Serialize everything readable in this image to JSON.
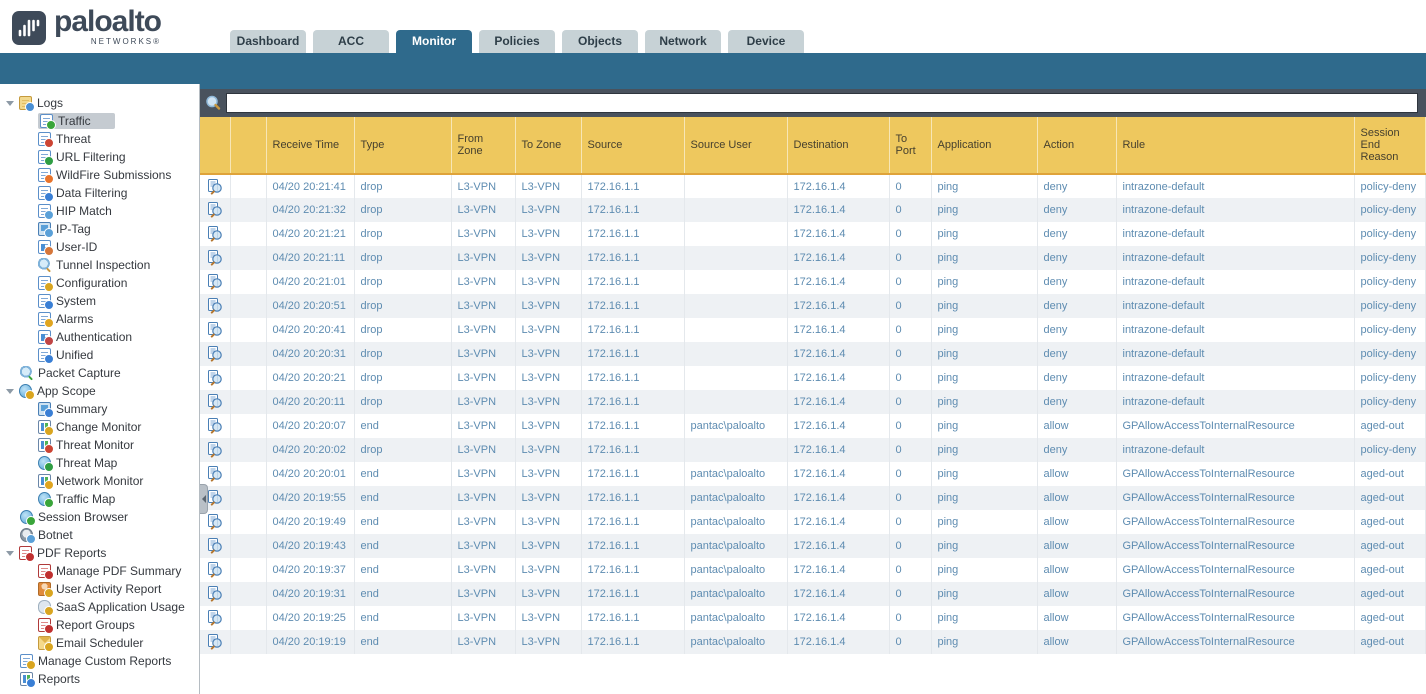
{
  "brand": {
    "name": "paloalto",
    "sub": "NETWORKS®",
    "mark_icon": "paloalto-wave-icon"
  },
  "tabs": [
    {
      "label": "Dashboard",
      "active": false
    },
    {
      "label": "ACC",
      "active": false
    },
    {
      "label": "Monitor",
      "active": true
    },
    {
      "label": "Policies",
      "active": false
    },
    {
      "label": "Objects",
      "active": false
    },
    {
      "label": "Network",
      "active": false
    },
    {
      "label": "Device",
      "active": false
    }
  ],
  "colors": {
    "active_tab": "#2f6a8c",
    "inactive_tab": "#c7d2d6",
    "table_header": "#eec85e",
    "searchbar": "#49525d",
    "row_text": "#5e8cb1",
    "brand": "#3e4a59"
  },
  "sidebar": {
    "items": [
      {
        "label": "Logs",
        "level": 0,
        "expandable": true,
        "selected": false,
        "icon": "logs-folder-icon"
      },
      {
        "label": "Traffic",
        "level": 1,
        "expandable": false,
        "selected": true,
        "icon": "traffic-log-icon"
      },
      {
        "label": "Threat",
        "level": 1,
        "expandable": false,
        "selected": false,
        "icon": "threat-log-icon"
      },
      {
        "label": "URL Filtering",
        "level": 1,
        "expandable": false,
        "selected": false,
        "icon": "url-filtering-icon"
      },
      {
        "label": "WildFire Submissions",
        "level": 1,
        "expandable": false,
        "selected": false,
        "icon": "wildfire-submissions-icon"
      },
      {
        "label": "Data Filtering",
        "level": 1,
        "expandable": false,
        "selected": false,
        "icon": "data-filtering-icon"
      },
      {
        "label": "HIP Match",
        "level": 1,
        "expandable": false,
        "selected": false,
        "icon": "hip-match-icon"
      },
      {
        "label": "IP-Tag",
        "level": 1,
        "expandable": false,
        "selected": false,
        "icon": "ip-tag-icon"
      },
      {
        "label": "User-ID",
        "level": 1,
        "expandable": false,
        "selected": false,
        "icon": "user-id-icon"
      },
      {
        "label": "Tunnel Inspection",
        "level": 1,
        "expandable": false,
        "selected": false,
        "icon": "tunnel-inspection-icon"
      },
      {
        "label": "Configuration",
        "level": 1,
        "expandable": false,
        "selected": false,
        "icon": "configuration-log-icon"
      },
      {
        "label": "System",
        "level": 1,
        "expandable": false,
        "selected": false,
        "icon": "system-log-icon"
      },
      {
        "label": "Alarms",
        "level": 1,
        "expandable": false,
        "selected": false,
        "icon": "alarms-icon"
      },
      {
        "label": "Authentication",
        "level": 1,
        "expandable": false,
        "selected": false,
        "icon": "authentication-log-icon"
      },
      {
        "label": "Unified",
        "level": 1,
        "expandable": false,
        "selected": false,
        "icon": "unified-log-icon"
      },
      {
        "label": "Packet Capture",
        "level": 0,
        "expandable": false,
        "selected": false,
        "icon": "packet-capture-icon"
      },
      {
        "label": "App Scope",
        "level": 0,
        "expandable": true,
        "selected": false,
        "icon": "app-scope-icon"
      },
      {
        "label": "Summary",
        "level": 1,
        "expandable": false,
        "selected": false,
        "icon": "summary-icon"
      },
      {
        "label": "Change Monitor",
        "level": 1,
        "expandable": false,
        "selected": false,
        "icon": "change-monitor-icon"
      },
      {
        "label": "Threat Monitor",
        "level": 1,
        "expandable": false,
        "selected": false,
        "icon": "threat-monitor-icon"
      },
      {
        "label": "Threat Map",
        "level": 1,
        "expandable": false,
        "selected": false,
        "icon": "threat-map-icon"
      },
      {
        "label": "Network Monitor",
        "level": 1,
        "expandable": false,
        "selected": false,
        "icon": "network-monitor-icon"
      },
      {
        "label": "Traffic Map",
        "level": 1,
        "expandable": false,
        "selected": false,
        "icon": "traffic-map-icon"
      },
      {
        "label": "Session Browser",
        "level": 0,
        "expandable": false,
        "selected": false,
        "icon": "session-browser-icon"
      },
      {
        "label": "Botnet",
        "level": 0,
        "expandable": false,
        "selected": false,
        "icon": "botnet-icon"
      },
      {
        "label": "PDF Reports",
        "level": 0,
        "expandable": true,
        "selected": false,
        "icon": "pdf-reports-icon"
      },
      {
        "label": "Manage PDF Summary",
        "level": 1,
        "expandable": false,
        "selected": false,
        "icon": "manage-pdf-summary-icon"
      },
      {
        "label": "User Activity Report",
        "level": 1,
        "expandable": false,
        "selected": false,
        "icon": "user-activity-report-icon"
      },
      {
        "label": "SaaS Application Usage",
        "level": 1,
        "expandable": false,
        "selected": false,
        "icon": "saas-application-usage-icon"
      },
      {
        "label": "Report Groups",
        "level": 1,
        "expandable": false,
        "selected": false,
        "icon": "report-groups-icon"
      },
      {
        "label": "Email Scheduler",
        "level": 1,
        "expandable": false,
        "selected": false,
        "icon": "email-scheduler-icon"
      },
      {
        "label": "Manage Custom Reports",
        "level": 0,
        "expandable": false,
        "selected": false,
        "icon": "manage-custom-reports-icon"
      },
      {
        "label": "Reports",
        "level": 0,
        "expandable": false,
        "selected": false,
        "icon": "reports-icon"
      }
    ]
  },
  "search": {
    "value": "",
    "icon": "search-icon"
  },
  "table": {
    "columns": [
      {
        "key": "icon",
        "label": ""
      },
      {
        "key": "blank",
        "label": ""
      },
      {
        "key": "receive_time",
        "label": "Receive Time"
      },
      {
        "key": "type",
        "label": "Type"
      },
      {
        "key": "from_zone",
        "label": "From Zone"
      },
      {
        "key": "to_zone",
        "label": "To Zone"
      },
      {
        "key": "source",
        "label": "Source"
      },
      {
        "key": "source_user",
        "label": "Source User"
      },
      {
        "key": "destination",
        "label": "Destination"
      },
      {
        "key": "to_port",
        "label": "To Port"
      },
      {
        "key": "application",
        "label": "Application"
      },
      {
        "key": "action",
        "label": "Action"
      },
      {
        "key": "rule",
        "label": "Rule"
      },
      {
        "key": "session_end_reason",
        "label": "Session End Reason"
      }
    ],
    "rows": [
      {
        "receive_time": "04/20 20:21:41",
        "type": "drop",
        "from_zone": "L3-VPN",
        "to_zone": "L3-VPN",
        "source": "172.16.1.1",
        "source_user": "",
        "destination": "172.16.1.4",
        "to_port": "0",
        "application": "ping",
        "action": "deny",
        "rule": "intrazone-default",
        "session_end_reason": "policy-deny"
      },
      {
        "receive_time": "04/20 20:21:32",
        "type": "drop",
        "from_zone": "L3-VPN",
        "to_zone": "L3-VPN",
        "source": "172.16.1.1",
        "source_user": "",
        "destination": "172.16.1.4",
        "to_port": "0",
        "application": "ping",
        "action": "deny",
        "rule": "intrazone-default",
        "session_end_reason": "policy-deny"
      },
      {
        "receive_time": "04/20 20:21:21",
        "type": "drop",
        "from_zone": "L3-VPN",
        "to_zone": "L3-VPN",
        "source": "172.16.1.1",
        "source_user": "",
        "destination": "172.16.1.4",
        "to_port": "0",
        "application": "ping",
        "action": "deny",
        "rule": "intrazone-default",
        "session_end_reason": "policy-deny"
      },
      {
        "receive_time": "04/20 20:21:11",
        "type": "drop",
        "from_zone": "L3-VPN",
        "to_zone": "L3-VPN",
        "source": "172.16.1.1",
        "source_user": "",
        "destination": "172.16.1.4",
        "to_port": "0",
        "application": "ping",
        "action": "deny",
        "rule": "intrazone-default",
        "session_end_reason": "policy-deny"
      },
      {
        "receive_time": "04/20 20:21:01",
        "type": "drop",
        "from_zone": "L3-VPN",
        "to_zone": "L3-VPN",
        "source": "172.16.1.1",
        "source_user": "",
        "destination": "172.16.1.4",
        "to_port": "0",
        "application": "ping",
        "action": "deny",
        "rule": "intrazone-default",
        "session_end_reason": "policy-deny"
      },
      {
        "receive_time": "04/20 20:20:51",
        "type": "drop",
        "from_zone": "L3-VPN",
        "to_zone": "L3-VPN",
        "source": "172.16.1.1",
        "source_user": "",
        "destination": "172.16.1.4",
        "to_port": "0",
        "application": "ping",
        "action": "deny",
        "rule": "intrazone-default",
        "session_end_reason": "policy-deny"
      },
      {
        "receive_time": "04/20 20:20:41",
        "type": "drop",
        "from_zone": "L3-VPN",
        "to_zone": "L3-VPN",
        "source": "172.16.1.1",
        "source_user": "",
        "destination": "172.16.1.4",
        "to_port": "0",
        "application": "ping",
        "action": "deny",
        "rule": "intrazone-default",
        "session_end_reason": "policy-deny"
      },
      {
        "receive_time": "04/20 20:20:31",
        "type": "drop",
        "from_zone": "L3-VPN",
        "to_zone": "L3-VPN",
        "source": "172.16.1.1",
        "source_user": "",
        "destination": "172.16.1.4",
        "to_port": "0",
        "application": "ping",
        "action": "deny",
        "rule": "intrazone-default",
        "session_end_reason": "policy-deny"
      },
      {
        "receive_time": "04/20 20:20:21",
        "type": "drop",
        "from_zone": "L3-VPN",
        "to_zone": "L3-VPN",
        "source": "172.16.1.1",
        "source_user": "",
        "destination": "172.16.1.4",
        "to_port": "0",
        "application": "ping",
        "action": "deny",
        "rule": "intrazone-default",
        "session_end_reason": "policy-deny"
      },
      {
        "receive_time": "04/20 20:20:11",
        "type": "drop",
        "from_zone": "L3-VPN",
        "to_zone": "L3-VPN",
        "source": "172.16.1.1",
        "source_user": "",
        "destination": "172.16.1.4",
        "to_port": "0",
        "application": "ping",
        "action": "deny",
        "rule": "intrazone-default",
        "session_end_reason": "policy-deny"
      },
      {
        "receive_time": "04/20 20:20:07",
        "type": "end",
        "from_zone": "L3-VPN",
        "to_zone": "L3-VPN",
        "source": "172.16.1.1",
        "source_user": "pantac\\paloalto",
        "destination": "172.16.1.4",
        "to_port": "0",
        "application": "ping",
        "action": "allow",
        "rule": "GPAllowAccessToInternalResource",
        "session_end_reason": "aged-out"
      },
      {
        "receive_time": "04/20 20:20:02",
        "type": "drop",
        "from_zone": "L3-VPN",
        "to_zone": "L3-VPN",
        "source": "172.16.1.1",
        "source_user": "",
        "destination": "172.16.1.4",
        "to_port": "0",
        "application": "ping",
        "action": "deny",
        "rule": "intrazone-default",
        "session_end_reason": "policy-deny"
      },
      {
        "receive_time": "04/20 20:20:01",
        "type": "end",
        "from_zone": "L3-VPN",
        "to_zone": "L3-VPN",
        "source": "172.16.1.1",
        "source_user": "pantac\\paloalto",
        "destination": "172.16.1.4",
        "to_port": "0",
        "application": "ping",
        "action": "allow",
        "rule": "GPAllowAccessToInternalResource",
        "session_end_reason": "aged-out"
      },
      {
        "receive_time": "04/20 20:19:55",
        "type": "end",
        "from_zone": "L3-VPN",
        "to_zone": "L3-VPN",
        "source": "172.16.1.1",
        "source_user": "pantac\\paloalto",
        "destination": "172.16.1.4",
        "to_port": "0",
        "application": "ping",
        "action": "allow",
        "rule": "GPAllowAccessToInternalResource",
        "session_end_reason": "aged-out"
      },
      {
        "receive_time": "04/20 20:19:49",
        "type": "end",
        "from_zone": "L3-VPN",
        "to_zone": "L3-VPN",
        "source": "172.16.1.1",
        "source_user": "pantac\\paloalto",
        "destination": "172.16.1.4",
        "to_port": "0",
        "application": "ping",
        "action": "allow",
        "rule": "GPAllowAccessToInternalResource",
        "session_end_reason": "aged-out"
      },
      {
        "receive_time": "04/20 20:19:43",
        "type": "end",
        "from_zone": "L3-VPN",
        "to_zone": "L3-VPN",
        "source": "172.16.1.1",
        "source_user": "pantac\\paloalto",
        "destination": "172.16.1.4",
        "to_port": "0",
        "application": "ping",
        "action": "allow",
        "rule": "GPAllowAccessToInternalResource",
        "session_end_reason": "aged-out"
      },
      {
        "receive_time": "04/20 20:19:37",
        "type": "end",
        "from_zone": "L3-VPN",
        "to_zone": "L3-VPN",
        "source": "172.16.1.1",
        "source_user": "pantac\\paloalto",
        "destination": "172.16.1.4",
        "to_port": "0",
        "application": "ping",
        "action": "allow",
        "rule": "GPAllowAccessToInternalResource",
        "session_end_reason": "aged-out"
      },
      {
        "receive_time": "04/20 20:19:31",
        "type": "end",
        "from_zone": "L3-VPN",
        "to_zone": "L3-VPN",
        "source": "172.16.1.1",
        "source_user": "pantac\\paloalto",
        "destination": "172.16.1.4",
        "to_port": "0",
        "application": "ping",
        "action": "allow",
        "rule": "GPAllowAccessToInternalResource",
        "session_end_reason": "aged-out"
      },
      {
        "receive_time": "04/20 20:19:25",
        "type": "end",
        "from_zone": "L3-VPN",
        "to_zone": "L3-VPN",
        "source": "172.16.1.1",
        "source_user": "pantac\\paloalto",
        "destination": "172.16.1.4",
        "to_port": "0",
        "application": "ping",
        "action": "allow",
        "rule": "GPAllowAccessToInternalResource",
        "session_end_reason": "aged-out"
      },
      {
        "receive_time": "04/20 20:19:19",
        "type": "end",
        "from_zone": "L3-VPN",
        "to_zone": "L3-VPN",
        "source": "172.16.1.1",
        "source_user": "pantac\\paloalto",
        "destination": "172.16.1.4",
        "to_port": "0",
        "application": "ping",
        "action": "allow",
        "rule": "GPAllowAccessToInternalResource",
        "session_end_reason": "aged-out"
      }
    ],
    "row_detail_icon": "log-detail-magnifier-icon"
  }
}
